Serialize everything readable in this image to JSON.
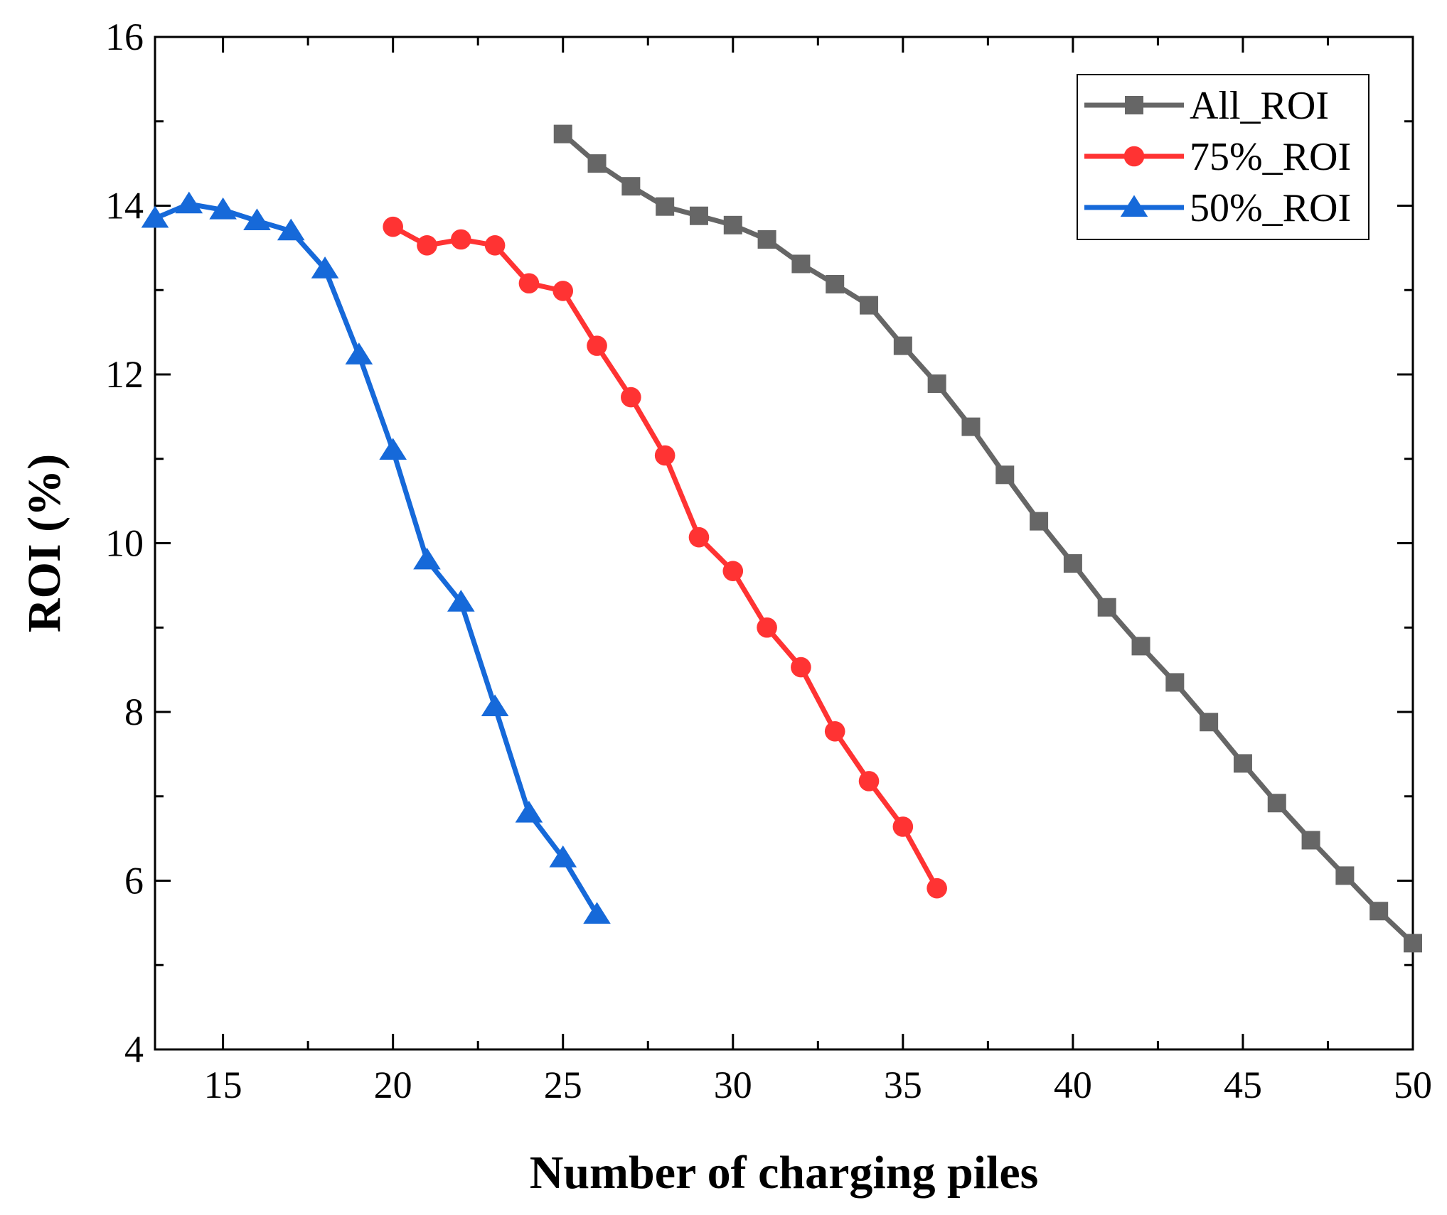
{
  "chart_data": {
    "type": "line",
    "title": "",
    "xlabel": "Number of charging piles",
    "ylabel": "ROI (%)",
    "xlim": [
      13,
      50
    ],
    "ylim": [
      4,
      16
    ],
    "xticks": [
      15,
      20,
      25,
      30,
      35,
      40,
      45,
      50
    ],
    "yticks": [
      4,
      6,
      8,
      10,
      12,
      14,
      16
    ],
    "grid": false,
    "legend_position": "top-right",
    "series": [
      {
        "name": "All_ROI",
        "color": "#666666",
        "marker": "square",
        "x": [
          25,
          26,
          27,
          28,
          29,
          30,
          31,
          32,
          33,
          34,
          35,
          36,
          37,
          38,
          39,
          40,
          41,
          42,
          43,
          44,
          45,
          46,
          47,
          48,
          49,
          50
        ],
        "y": [
          14.85,
          14.5,
          14.23,
          13.99,
          13.88,
          13.77,
          13.6,
          13.31,
          13.07,
          12.82,
          12.34,
          11.89,
          11.38,
          10.81,
          10.26,
          9.76,
          9.24,
          8.78,
          8.35,
          7.88,
          7.39,
          6.92,
          6.48,
          6.06,
          5.64,
          5.26
        ]
      },
      {
        "name": "75%_ROI",
        "color": "#ff3333",
        "marker": "circle",
        "x": [
          20,
          21,
          22,
          23,
          24,
          25,
          26,
          27,
          28,
          29,
          30,
          31,
          32,
          33,
          34,
          35,
          36
        ],
        "y": [
          13.75,
          13.53,
          13.6,
          13.53,
          13.08,
          12.99,
          12.34,
          11.73,
          11.04,
          10.07,
          9.67,
          9.0,
          8.53,
          7.77,
          7.18,
          6.64,
          5.91
        ]
      },
      {
        "name": "50%_ROI",
        "color": "#1669d9",
        "marker": "triangle",
        "x": [
          13,
          14,
          15,
          16,
          17,
          18,
          19,
          20,
          21,
          22,
          23,
          24,
          25,
          26
        ],
        "y": [
          13.85,
          14.02,
          13.95,
          13.82,
          13.7,
          13.25,
          12.23,
          11.1,
          9.8,
          9.3,
          8.06,
          6.8,
          6.27,
          5.6
        ]
      }
    ]
  }
}
